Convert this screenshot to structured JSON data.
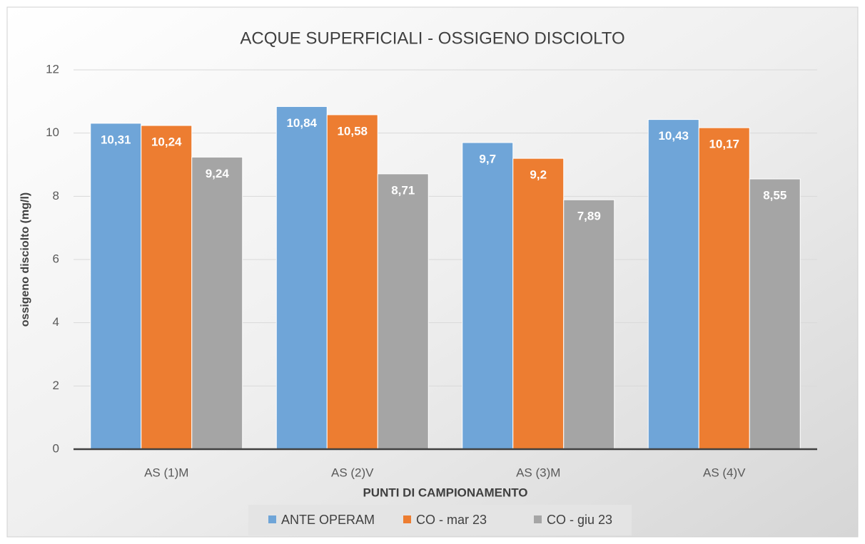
{
  "chart_data": {
    "type": "bar",
    "title": "ACQUE SUPERFICIALI - OSSIGENO DISCIOLTO",
    "x_label": "PUNTI DI CAMPIONAMENTO",
    "y_label": "ossigeno disciolto (mg/l)",
    "categories": [
      "AS (1)M",
      "AS (2)V",
      "AS (3)M",
      "AS (4)V"
    ],
    "series": [
      {
        "name": "ANTE OPERAM",
        "color": "#6fa5d8",
        "values": [
          10.31,
          10.84,
          9.7,
          10.43
        ],
        "value_labels": [
          "10,31",
          "10,84",
          "9,7",
          "10,43"
        ]
      },
      {
        "name": "CO - mar 23",
        "color": "#ed7d31",
        "values": [
          10.24,
          10.58,
          9.2,
          10.17
        ],
        "value_labels": [
          "10,24",
          "10,58",
          "9,2",
          "10,17"
        ]
      },
      {
        "name": "CO - giu 23",
        "color": "#a5a5a5",
        "values": [
          9.24,
          8.71,
          7.89,
          8.55
        ],
        "value_labels": [
          "9,24",
          "8,71",
          "7,89",
          "8,55"
        ]
      }
    ],
    "ylim": [
      0,
      12
    ],
    "yticks": [
      0,
      2,
      4,
      6,
      8,
      10,
      12
    ],
    "grid": true,
    "legend": "bottom"
  }
}
